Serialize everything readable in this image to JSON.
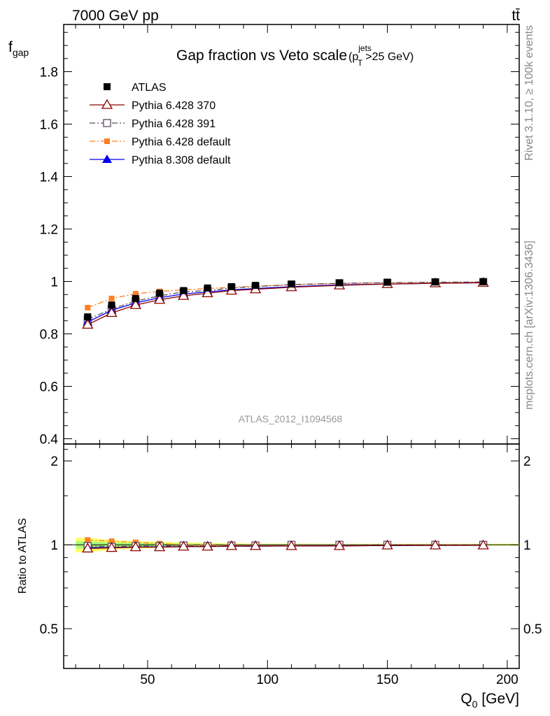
{
  "header": {
    "left": "7000 GeV pp",
    "right": "tt̄"
  },
  "side_labels": {
    "rivet": "Rivet 3.1.10, ≥ 100k events",
    "mcplots": "mcplots.cern.ch [arXiv:1306.3436]"
  },
  "colors": {
    "atlas": "#000000",
    "p370": "#8b0000",
    "p391": "#5a4a5a",
    "p6def": "#ff7f27",
    "p8def": "#0000ee",
    "band_outer": "#ffff66",
    "band_inner": "#aaff77"
  },
  "chart_data": [
    {
      "type": "scatter",
      "title": "Gap fraction vs Veto scale",
      "title_suffix": {
        "open": "(p",
        "sup": "jets",
        "sub": "T",
        "close": ">25 GeV)"
      },
      "ylabel": {
        "main": "f",
        "sub": "gap"
      },
      "xlim": [
        15,
        205
      ],
      "ylim": [
        0.38,
        1.98
      ],
      "y_ticks": [
        "0.4",
        "0.6",
        "0.8",
        "1",
        "1.2",
        "1.4",
        "1.6",
        "1.8"
      ],
      "watermark": "ATLAS_2012_I1094568",
      "x": [
        25,
        35,
        45,
        55,
        65,
        75,
        85,
        95,
        110,
        130,
        150,
        170,
        190
      ],
      "series": [
        {
          "name": "ATLAS",
          "values": [
            0.865,
            0.91,
            0.935,
            0.955,
            0.965,
            0.975,
            0.98,
            0.985,
            0.99,
            0.995,
            0.997,
            0.998,
            0.999
          ]
        },
        {
          "name": "Pythia 6.428 370",
          "values": [
            0.835,
            0.88,
            0.91,
            0.93,
            0.945,
            0.955,
            0.965,
            0.97,
            0.978,
            0.985,
            0.99,
            0.993,
            0.995
          ]
        },
        {
          "name": "Pythia 6.428 391",
          "values": [
            0.855,
            0.895,
            0.925,
            0.945,
            0.96,
            0.965,
            0.975,
            0.98,
            0.988,
            0.993,
            0.995,
            0.997,
            0.998
          ]
        },
        {
          "name": "Pythia 6.428 default",
          "values": [
            0.9,
            0.935,
            0.953,
            0.962,
            0.968,
            0.973,
            0.978,
            0.982,
            0.987,
            0.992,
            0.995,
            0.996,
            0.997
          ]
        },
        {
          "name": "Pythia 8.308 default",
          "values": [
            0.845,
            0.89,
            0.918,
            0.938,
            0.952,
            0.96,
            0.968,
            0.973,
            0.98,
            0.987,
            0.99,
            0.993,
            0.995
          ]
        }
      ]
    },
    {
      "type": "scatter",
      "ylabel": "Ratio to ATLAS",
      "xlabel": {
        "main": "Q",
        "sub": "0",
        "unit": " [GeV]"
      },
      "xlim": [
        15,
        205
      ],
      "ylim": [
        0.36,
        2.3
      ],
      "y_ticks": [
        "0.5",
        "1",
        "2"
      ],
      "x_ticks": [
        "50",
        "100",
        "150",
        "200"
      ],
      "x": [
        25,
        35,
        45,
        55,
        65,
        75,
        85,
        95,
        110,
        130,
        150,
        170,
        190
      ],
      "band_outer": [
        0.06,
        0.04,
        0.03,
        0.025,
        0.02,
        0.015,
        0.012,
        0.01,
        0.01,
        0.008,
        0.008,
        0.008,
        0.008
      ],
      "band_inner": [
        0.03,
        0.02,
        0.015,
        0.012,
        0.01,
        0.008,
        0.006,
        0.005,
        0.005,
        0.004,
        0.004,
        0.004,
        0.004
      ],
      "series": [
        {
          "name": "Pythia 6.428 370",
          "values": [
            0.97,
            0.975,
            0.98,
            0.98,
            0.985,
            0.985,
            0.99,
            0.99,
            0.99,
            0.99,
            0.995,
            0.995,
            0.995
          ]
        },
        {
          "name": "Pythia 6.428 391",
          "values": [
            0.99,
            0.985,
            0.99,
            0.99,
            0.995,
            0.99,
            0.995,
            0.995,
            1.0,
            1.0,
            1.0,
            1.0,
            1.0
          ]
        },
        {
          "name": "Pythia 6.428 default",
          "values": [
            1.04,
            1.03,
            1.02,
            1.01,
            1.0,
            0.998,
            0.998,
            0.998,
            0.997,
            0.997,
            0.998,
            0.998,
            0.998
          ]
        },
        {
          "name": "Pythia 8.308 default",
          "values": [
            0.977,
            0.978,
            0.982,
            0.982,
            0.987,
            0.985,
            0.988,
            0.988,
            0.99,
            0.992,
            0.993,
            0.995,
            0.996
          ]
        }
      ]
    }
  ]
}
